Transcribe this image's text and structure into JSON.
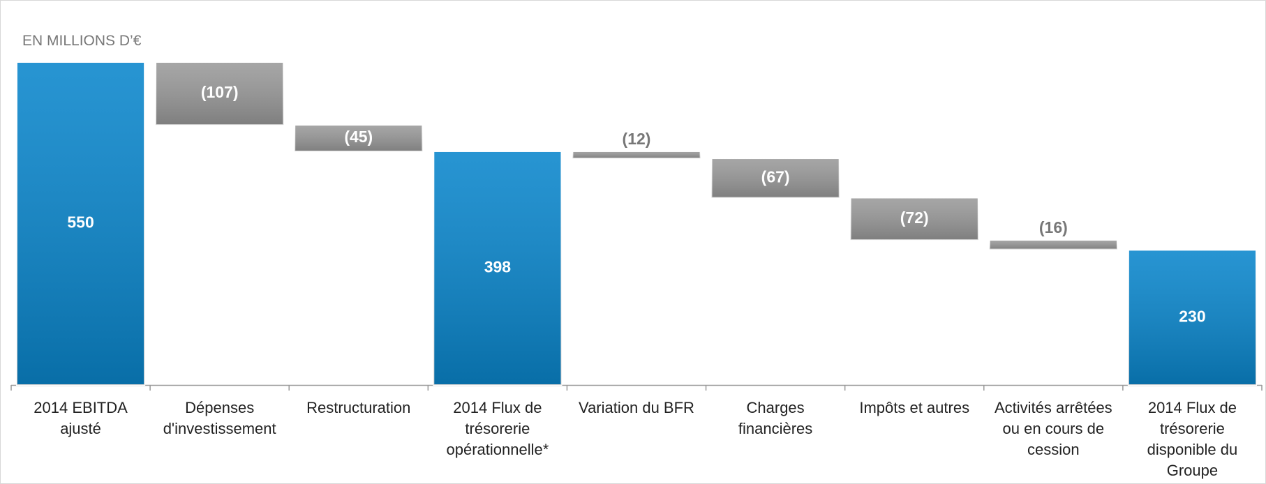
{
  "chart_data": {
    "type": "waterfall",
    "title": "EN MILLIONS D’€",
    "categories": [
      "2014 EBITDA ajusté",
      "Dépenses d'investissement",
      "Restructuration",
      "2014 Flux de trésorerie opérationnelle*",
      "Variation du BFR",
      "Charges financières",
      "Impôts et autres",
      "Activités arrêtées ou en cours de cession",
      "2014 Flux de trésorerie disponible du Groupe"
    ],
    "series": [
      {
        "color": "#0a86cc",
        "values": [
          550,
          null,
          null,
          398,
          null,
          null,
          null,
          null,
          230
        ]
      },
      {
        "color": "#9a9a9a",
        "values": [
          null,
          -107,
          -45,
          null,
          -12,
          -67,
          -72,
          -16,
          null
        ],
        "value_labels": [
          null,
          "(107)",
          "(45)",
          null,
          "(12)",
          "(67)",
          "(72)",
          "(16)",
          null
        ]
      }
    ],
    "ylim": [
      0,
      550
    ]
  }
}
